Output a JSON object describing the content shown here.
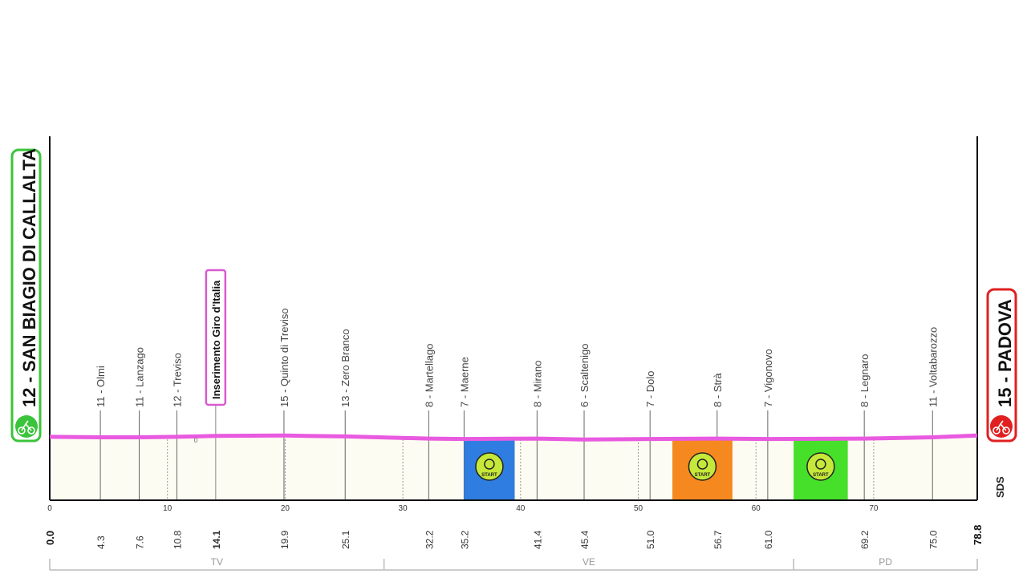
{
  "chart_data": {
    "type": "area",
    "title": "",
    "xlabel": "",
    "ylabel": "",
    "xlim": [
      0,
      78.8
    ],
    "x_ticks": [
      0,
      10,
      20,
      30,
      40,
      50,
      60,
      70
    ],
    "start": {
      "label": "12 - SAN BIAGIO DI CALLALTA",
      "km": 0.0,
      "color": "#3bc43b"
    },
    "finish": {
      "label": "15 - PADOVA",
      "km": 78.8,
      "color": "#e02020"
    },
    "series": [
      {
        "x": [
          0,
          4.3,
          7.6,
          10.8,
          14.1,
          19.9,
          25.1,
          32.2,
          35.2,
          41.4,
          45.4,
          51.0,
          56.7,
          61.0,
          69.2,
          75.0,
          78.8
        ],
        "y": [
          12,
          11,
          11,
          12,
          14,
          15,
          13,
          8,
          7,
          8,
          6,
          7,
          8,
          7,
          8,
          11,
          15
        ]
      }
    ],
    "waypoints": [
      {
        "km": 4.3,
        "km_label": "4.3",
        "name": "11 - Olmi"
      },
      {
        "km": 7.6,
        "km_label": "7.6",
        "name": "11 - Lanzago"
      },
      {
        "km": 10.8,
        "km_label": "10.8",
        "name": "12 - Treviso"
      },
      {
        "km": 14.1,
        "km_label": "14.1",
        "name": "Inserimento Giro d'Italia",
        "highlight": true
      },
      {
        "km": 19.9,
        "km_label": "19.9",
        "name": "15 - Quinto di Treviso"
      },
      {
        "km": 25.1,
        "km_label": "25.1",
        "name": "13 - Zero Branco"
      },
      {
        "km": 32.2,
        "km_label": "32.2",
        "name": "8 - Martellago"
      },
      {
        "km": 35.2,
        "km_label": "35.2",
        "name": "7 - Maerne"
      },
      {
        "km": 41.4,
        "km_label": "41.4",
        "name": "8 - Mirano"
      },
      {
        "km": 45.4,
        "km_label": "45.4",
        "name": "6 - Scaltenigo"
      },
      {
        "km": 51.0,
        "km_label": "51.0",
        "name": "7 - Dolo"
      },
      {
        "km": 56.7,
        "km_label": "56.7",
        "name": "8 - Strà"
      },
      {
        "km": 61.0,
        "km_label": "61.0",
        "name": "7 - Vigonovo"
      },
      {
        "km": 69.2,
        "km_label": "69.2",
        "name": "8 - Legnaro"
      },
      {
        "km": 75.0,
        "km_label": "75.0",
        "name": "11 - Voltabarozzo"
      }
    ],
    "start_km_label": "0.0",
    "finish_km_label": "78.8",
    "segments": [
      {
        "from": 35.2,
        "to": 39.5,
        "color": "#2f7de0",
        "icon": "stopwatch-icon",
        "label": "START"
      },
      {
        "from": 52.9,
        "to": 58.0,
        "color": "#f5891f",
        "icon": "sprint-icon",
        "label": "START"
      },
      {
        "from": 63.2,
        "to": 67.8,
        "color": "#46e02a",
        "icon": "climber-icon",
        "label": "START"
      }
    ],
    "provinces": [
      {
        "label": "TV",
        "from": 0,
        "to": 28.4
      },
      {
        "label": "VE",
        "from": 28.4,
        "to": 63.2
      },
      {
        "label": "PD",
        "from": 63.2,
        "to": 78.8
      }
    ],
    "minor_label": "0",
    "brand": "SDS",
    "profile_color": "#e85ae0"
  }
}
